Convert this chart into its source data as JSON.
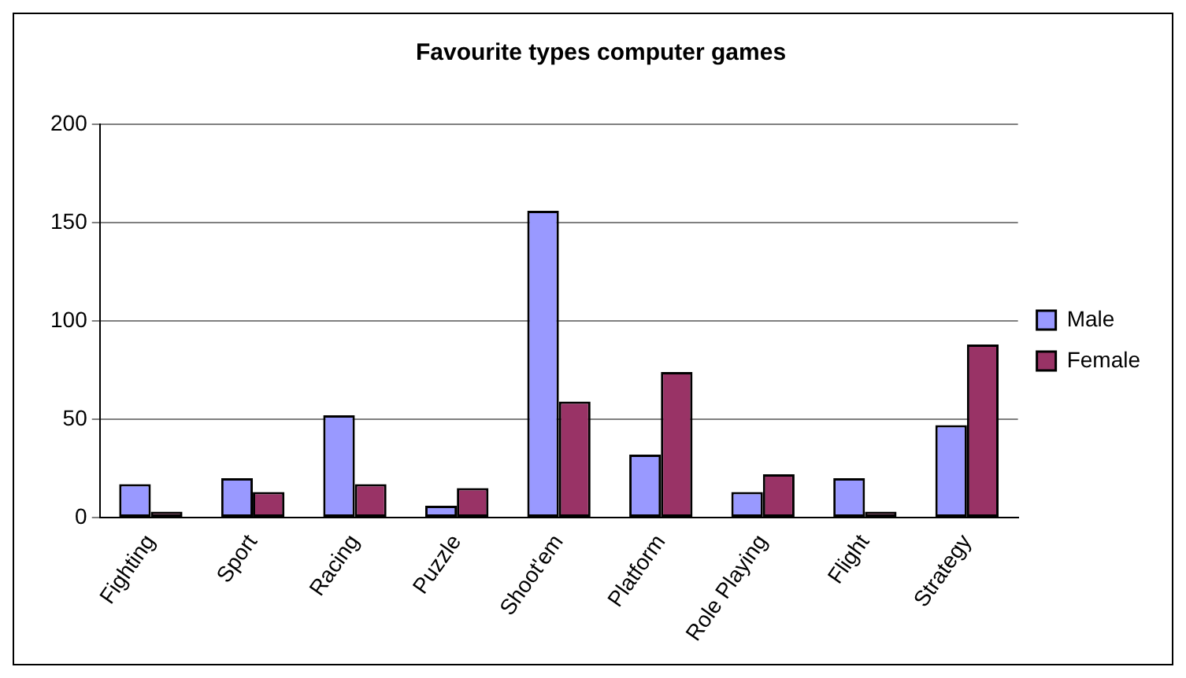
{
  "chart_data": {
    "type": "bar",
    "title": "Favourite types computer games",
    "categories": [
      "Fighting",
      "Sport",
      "Racing",
      "Puzzle",
      "Shoot'em",
      "Platform",
      "Role Playing",
      "Flight",
      "Strategy"
    ],
    "series": [
      {
        "name": "Male",
        "color": "#9999ff",
        "values": [
          17,
          20,
          52,
          6,
          156,
          32,
          13,
          20,
          47
        ]
      },
      {
        "name": "Female",
        "color": "#993366",
        "values": [
          3,
          13,
          17,
          15,
          59,
          74,
          22,
          3,
          88
        ]
      }
    ],
    "ylim": [
      0,
      200
    ],
    "yticks": [
      0,
      50,
      100,
      150,
      200
    ],
    "grid": "y",
    "legend": "right"
  }
}
